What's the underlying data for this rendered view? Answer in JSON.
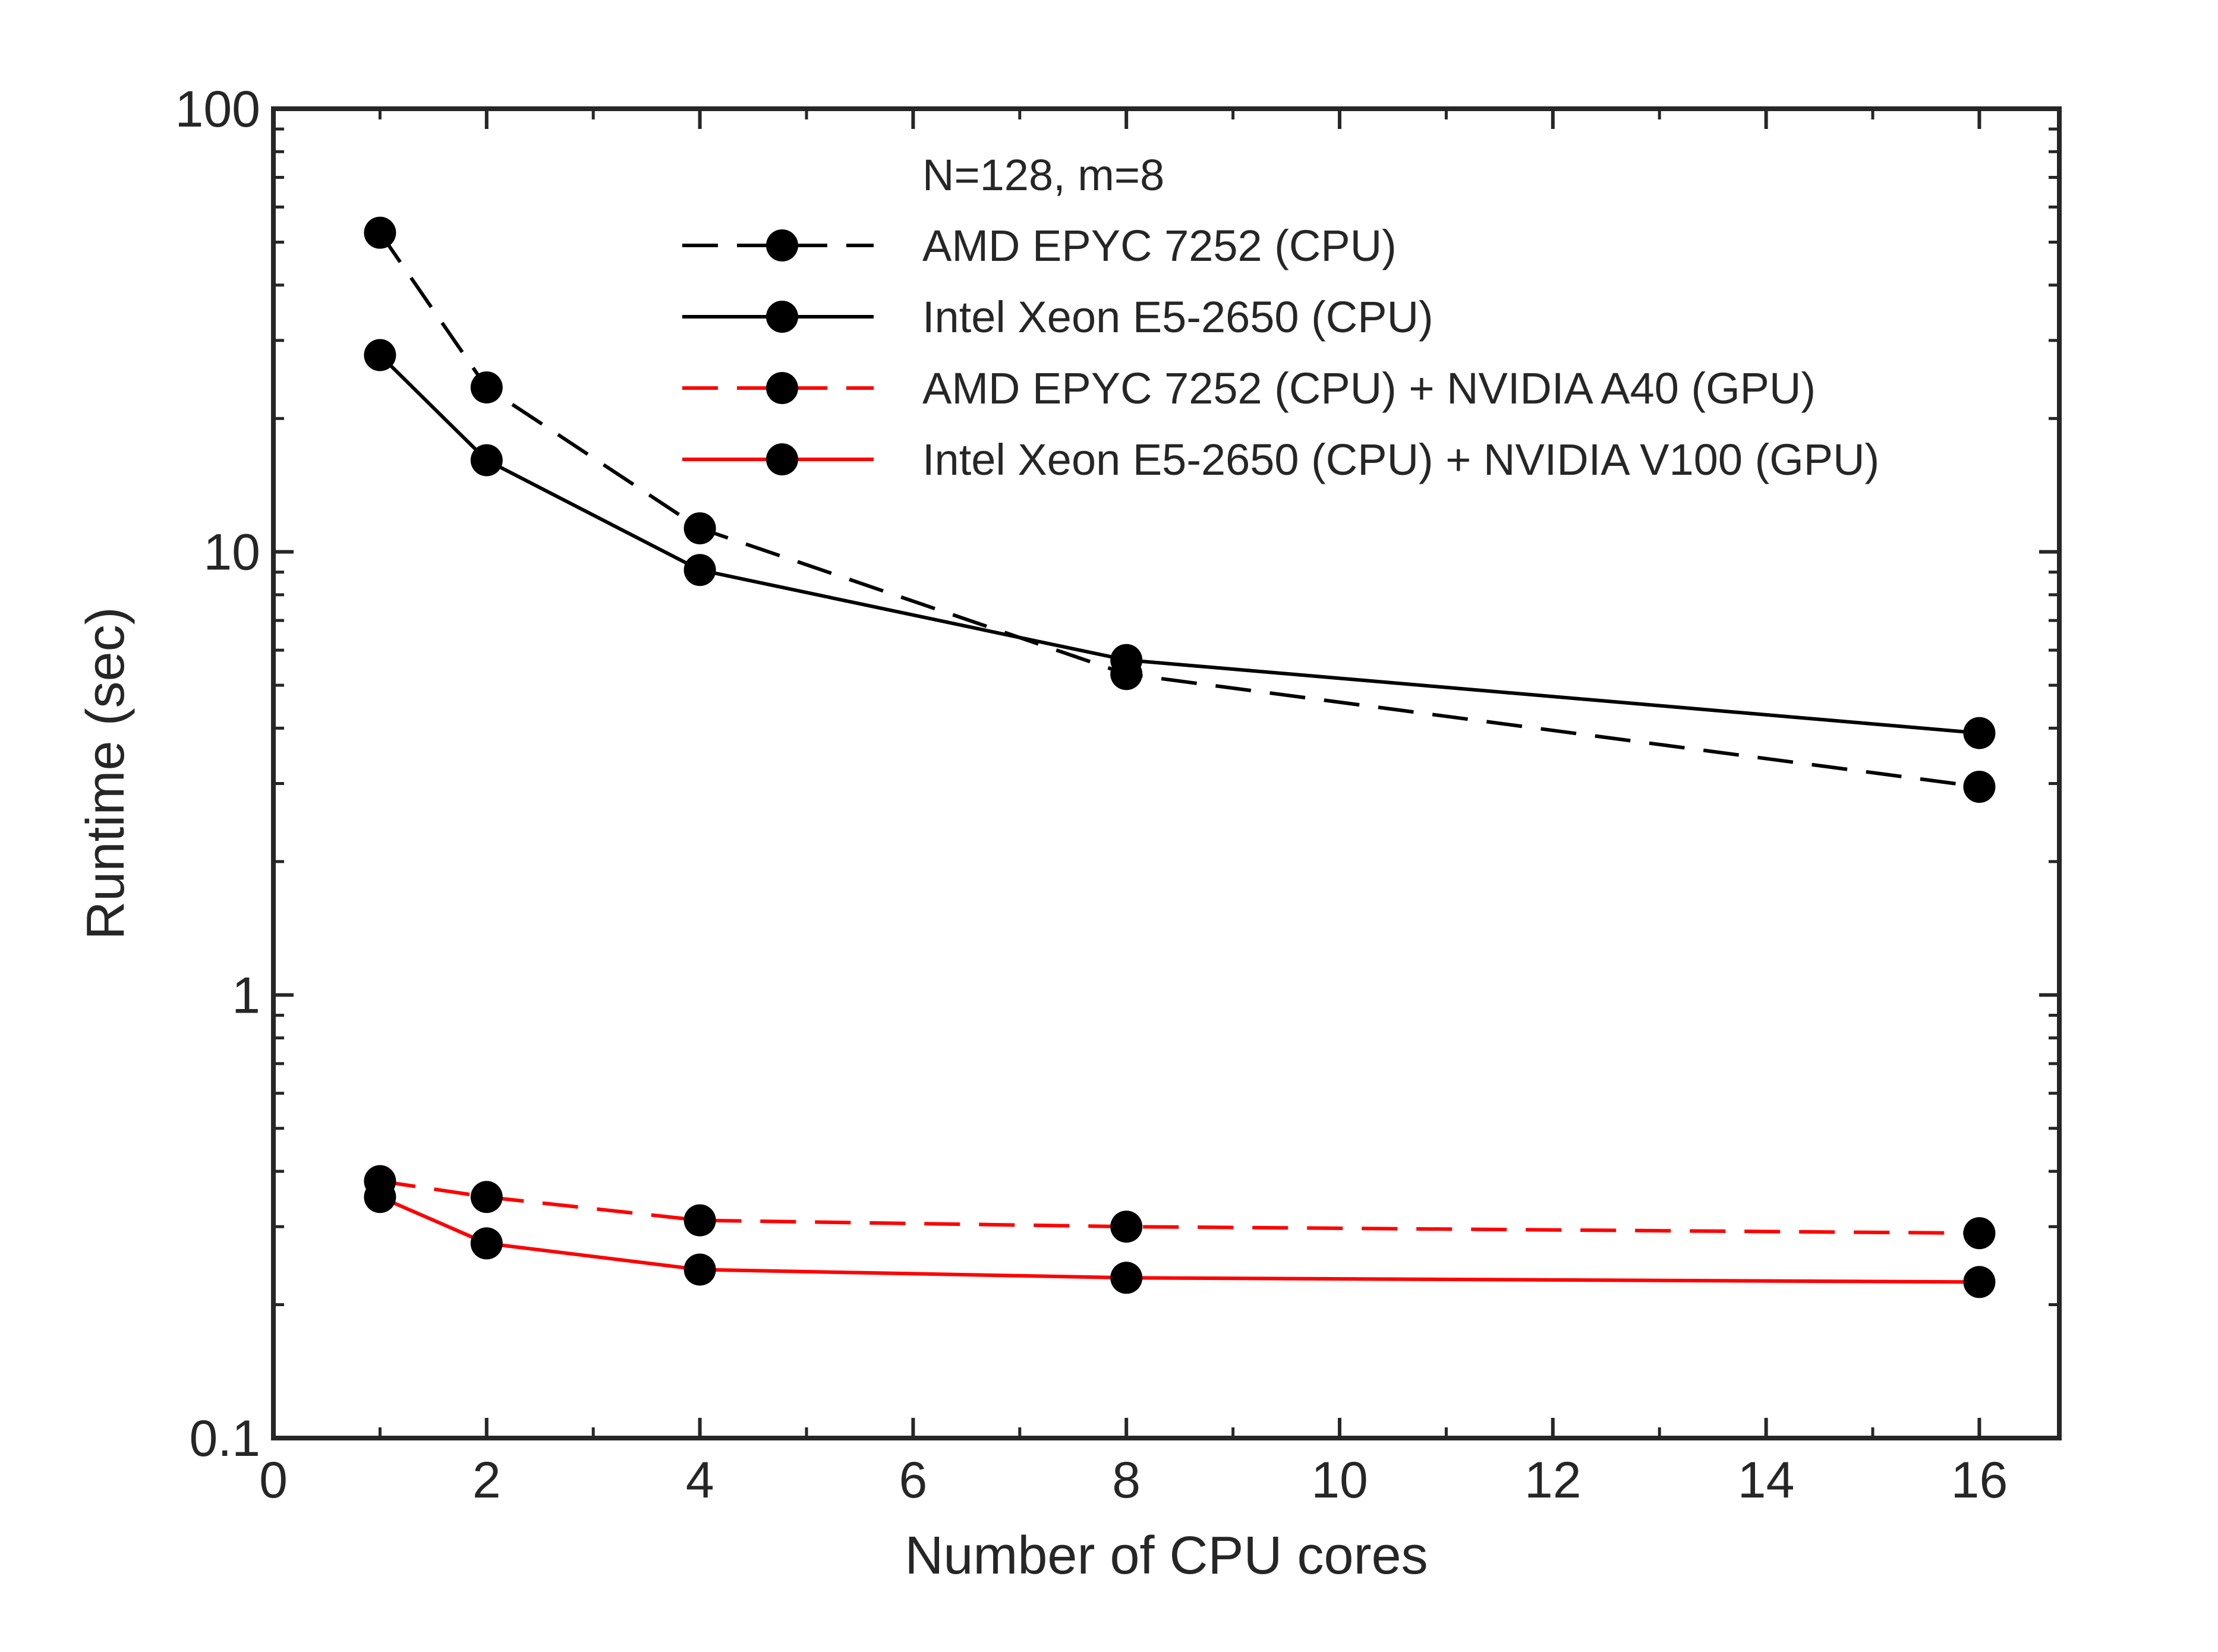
{
  "chart_data": {
    "type": "line",
    "title": "",
    "xlabel": "Number of CPU cores",
    "ylabel": "Runtime (sec)",
    "xscale": "linear",
    "yscale": "log",
    "xlim": [
      0,
      16.75
    ],
    "ylim": [
      0.1,
      100
    ],
    "xticks": [
      0,
      2,
      4,
      6,
      8,
      10,
      12,
      14,
      16
    ],
    "xtick_labels": [
      "0",
      "2",
      "4",
      "6",
      "8",
      "10",
      "12",
      "14",
      "16"
    ],
    "yticks": [
      0.1,
      1,
      10,
      100
    ],
    "ytick_labels": [
      "0.1",
      "1",
      "10",
      "100"
    ],
    "grid": false,
    "legend": {
      "title": "N=128, m=8",
      "location": "top-right"
    },
    "series": [
      {
        "name": "AMD EPYC 7252 (CPU)",
        "color": "#000000",
        "linestyle": "dashed",
        "marker": "circle",
        "x": [
          1,
          2,
          4,
          8,
          16
        ],
        "values": [
          52.5,
          23.5,
          11.3,
          5.3,
          2.95
        ]
      },
      {
        "name": "Intel Xeon E5-2650 (CPU)",
        "color": "#000000",
        "linestyle": "solid",
        "marker": "circle",
        "x": [
          1,
          2,
          4,
          8,
          16
        ],
        "values": [
          27.8,
          16.1,
          9.1,
          5.7,
          3.9
        ]
      },
      {
        "name": "AMD EPYC 7252 (CPU) + NVIDIA A40 (GPU)",
        "color": "#ff0000",
        "linestyle": "dashed",
        "marker": "circle",
        "x": [
          1,
          2,
          4,
          8,
          16
        ],
        "values": [
          0.38,
          0.35,
          0.31,
          0.3,
          0.29
        ]
      },
      {
        "name": "Intel Xeon E5-2650 (CPU) + NVIDIA V100 (GPU)",
        "color": "#ff0000",
        "linestyle": "solid",
        "marker": "circle",
        "x": [
          1,
          2,
          4,
          8,
          16
        ],
        "values": [
          0.35,
          0.275,
          0.24,
          0.23,
          0.225
        ]
      }
    ]
  }
}
